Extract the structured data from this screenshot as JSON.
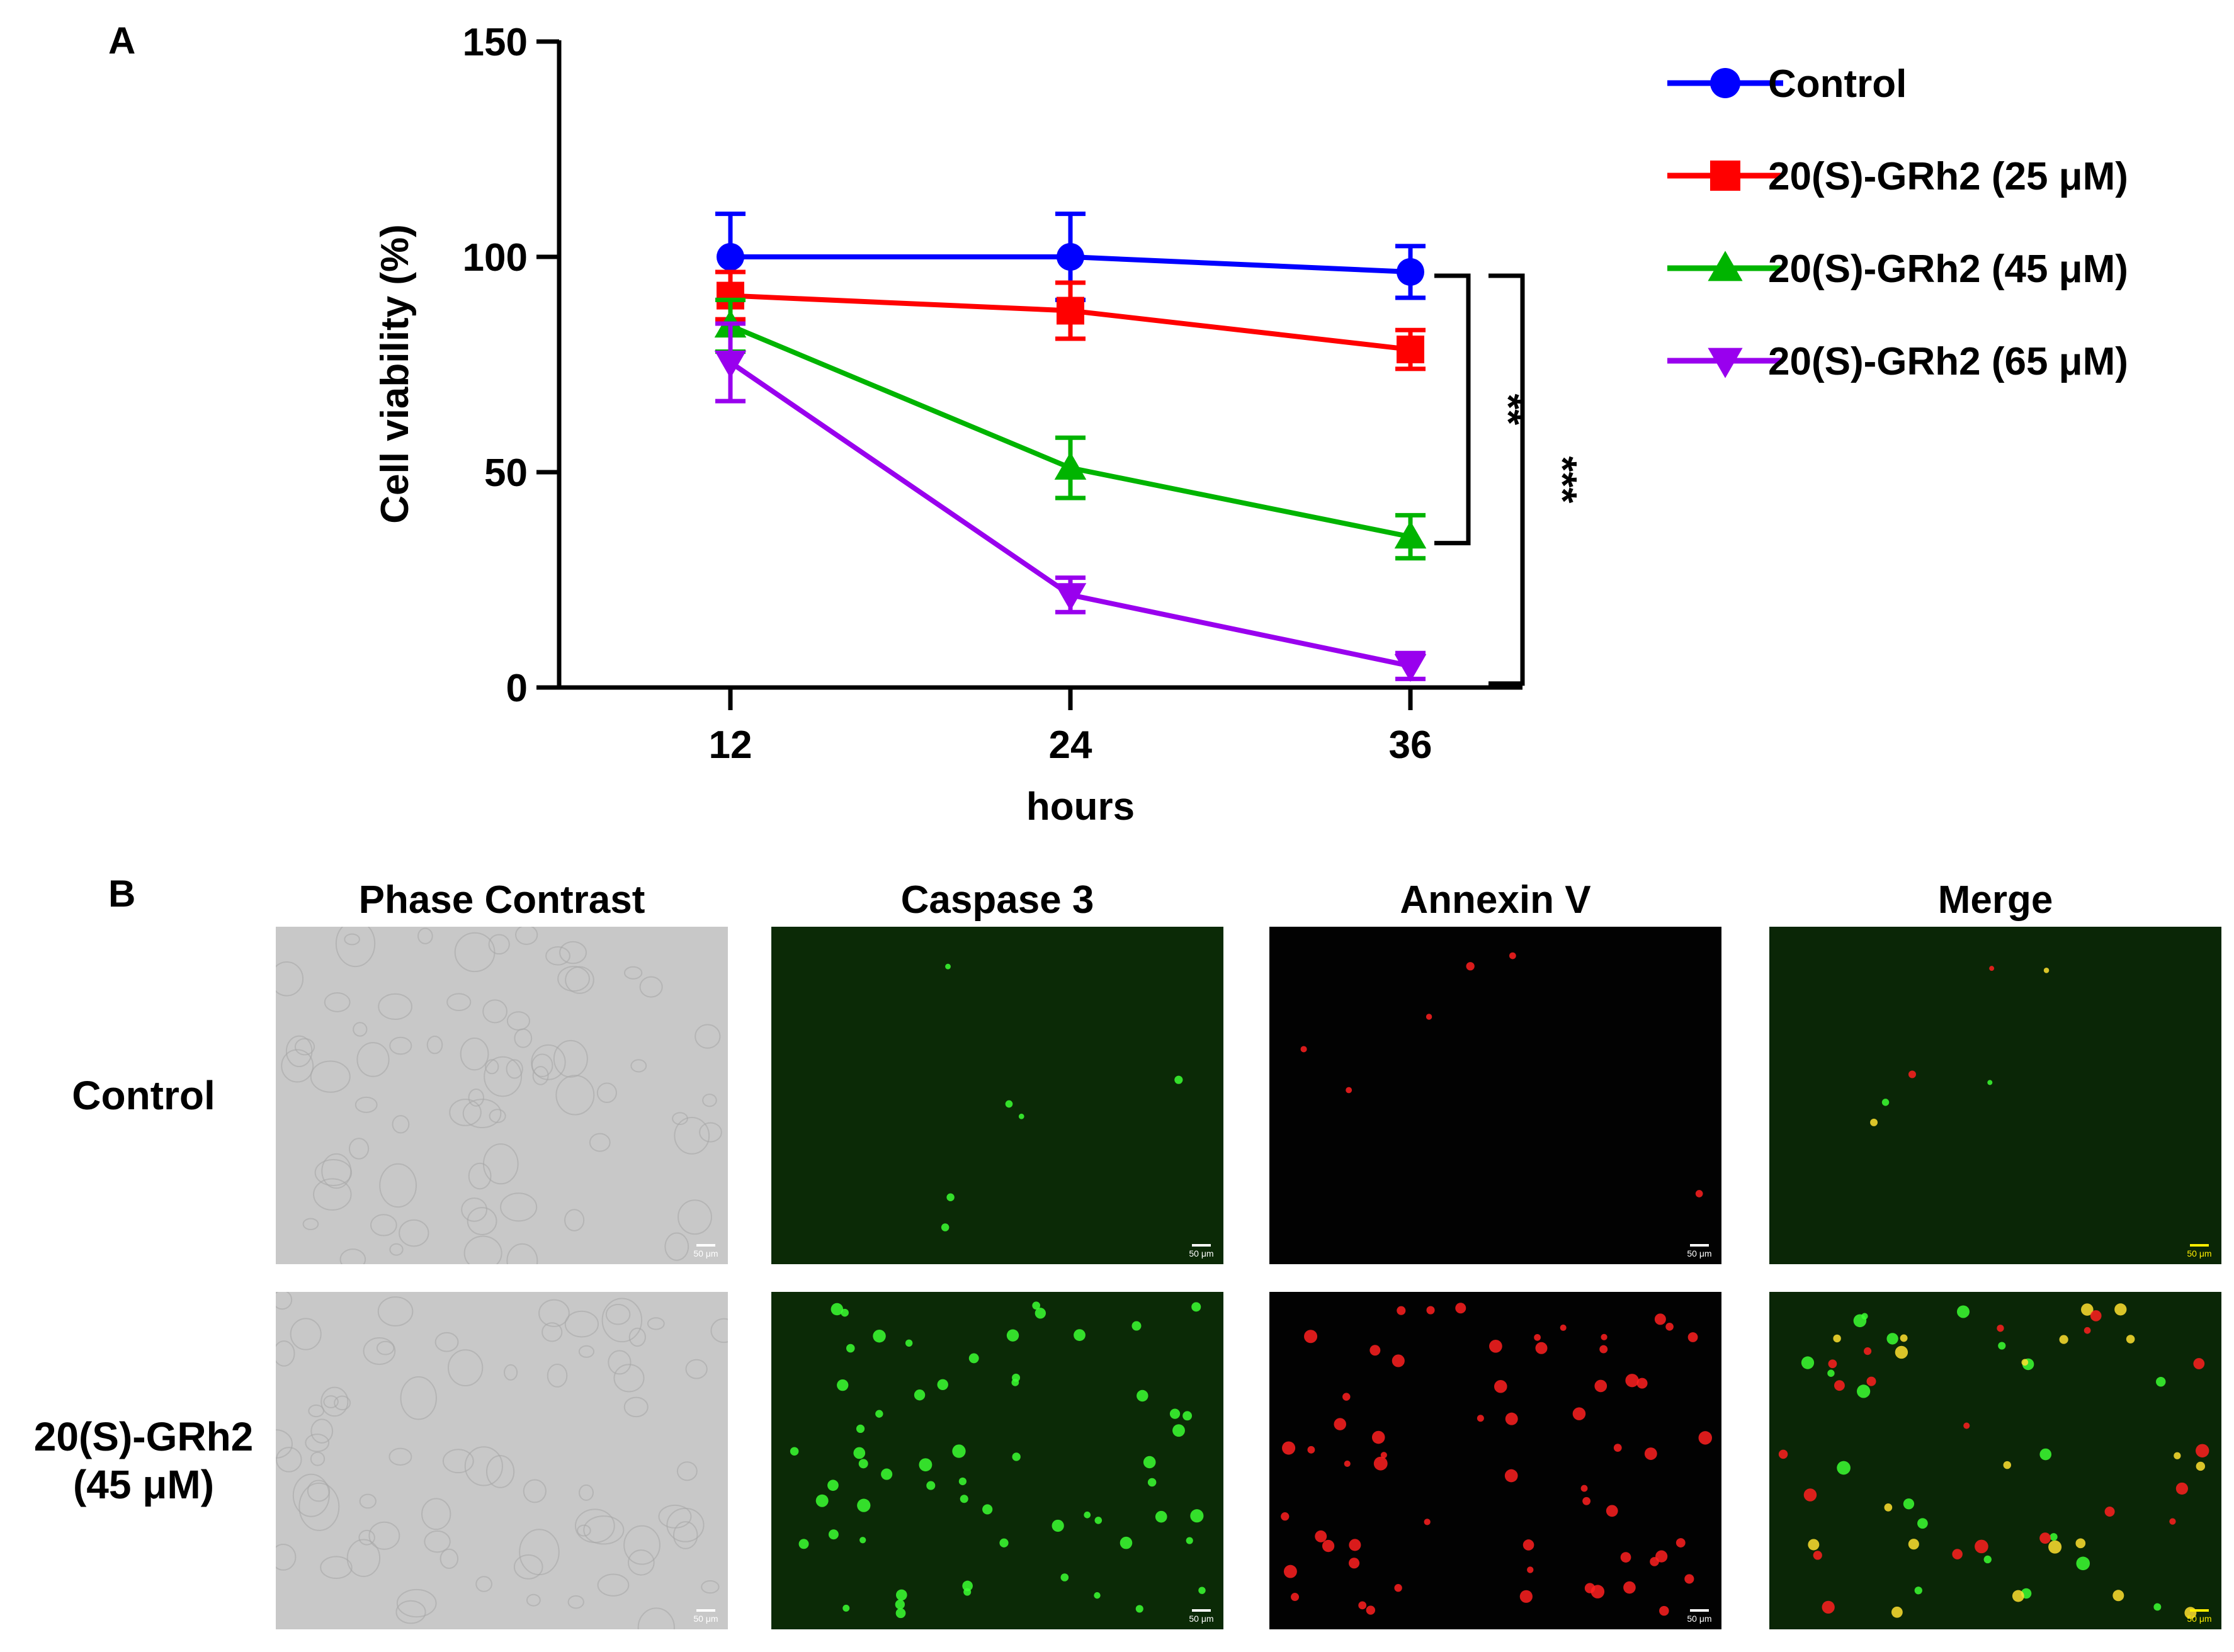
{
  "panel_a": {
    "letter": "A"
  },
  "panel_b": {
    "letter": "B",
    "columns": [
      "Phase Contrast",
      "Caspase 3",
      "Annexin V",
      "Merge"
    ],
    "rows": [
      {
        "label_lines": [
          "Control"
        ]
      },
      {
        "label_lines": [
          "20(S)-GRh2",
          "(45 μM)"
        ]
      }
    ],
    "scale_bar_label": "50 μm",
    "colors": {
      "phase_bg": "#c8c8c8",
      "caspase_bg": "#0b2a06",
      "annexin_bg": "#020202",
      "merge_bg": "#0a2606",
      "green_signal": "#3cff32",
      "red_signal": "#ff2020",
      "yellow_signal": "#ffe030",
      "merge_scale_bar": "#ffee00"
    }
  },
  "chart_data": {
    "type": "line",
    "title": "",
    "xlabel": "hours",
    "ylabel": "Cell viability (%)",
    "x": [
      12,
      24,
      36
    ],
    "xticks": [
      "12",
      "24",
      "36"
    ],
    "yticks": [
      0,
      50,
      100,
      150
    ],
    "ylim": [
      0,
      150
    ],
    "grid": false,
    "legend_position": "right",
    "series": [
      {
        "name": "Control",
        "color": "#0000ff",
        "marker": "circle",
        "values": [
          100,
          100,
          96.5
        ],
        "errors": [
          10,
          10,
          6
        ]
      },
      {
        "name": "20(S)-GRh2 (25 μM)",
        "color": "#ff0000",
        "marker": "square",
        "values": [
          91,
          87.5,
          78.5
        ],
        "errors": [
          5.5,
          6.5,
          4.5
        ]
      },
      {
        "name": "20(S)-GRh2 (45 μM)",
        "color": "#00b400",
        "marker": "triangle-up",
        "values": [
          84,
          51,
          35
        ],
        "errors": [
          6,
          7,
          5
        ]
      },
      {
        "name": "20(S)-GRh2 (65 μM)",
        "color": "#9900ee",
        "marker": "triangle-down",
        "values": [
          75.5,
          21.5,
          5
        ],
        "errors": [
          9,
          4,
          3
        ]
      }
    ],
    "annotations": [
      {
        "text": "**",
        "from_series": "Control",
        "to_series": "20(S)-GRh2 (45 μM)"
      },
      {
        "text": "***",
        "from_series": "Control",
        "to_series": "20(S)-GRh2 (65 μM)"
      }
    ]
  }
}
